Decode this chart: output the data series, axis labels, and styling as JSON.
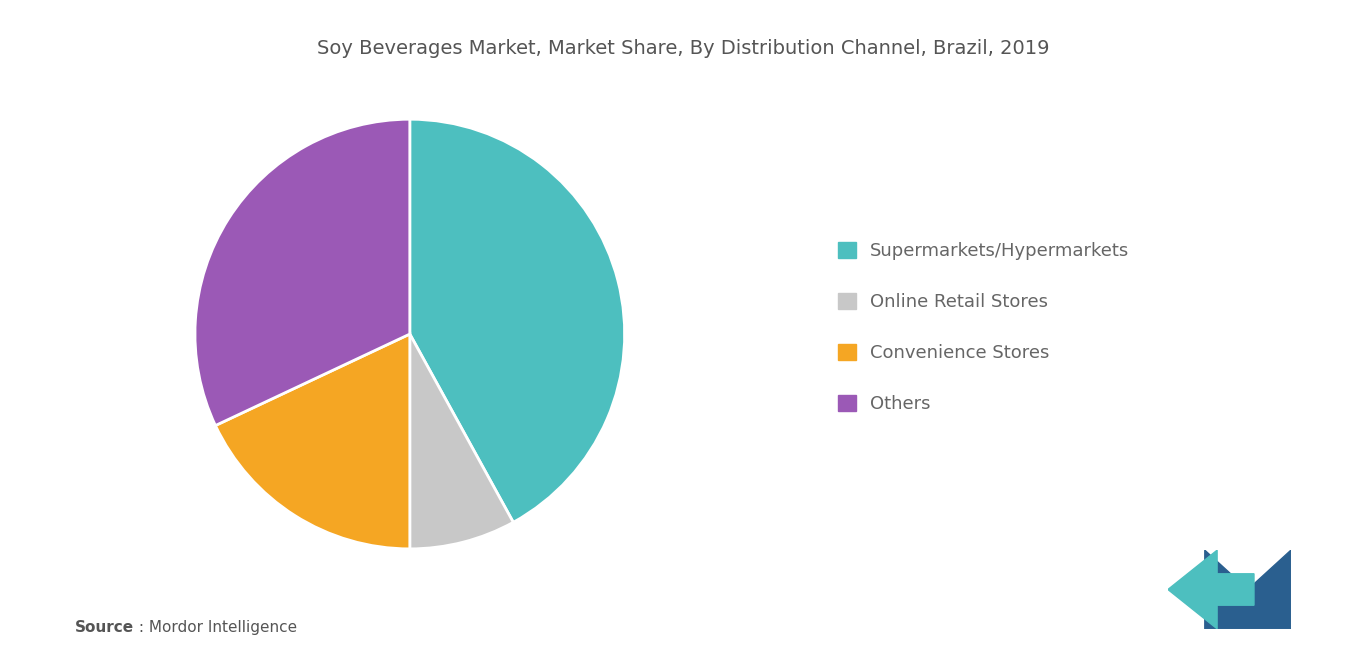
{
  "title": "Soy Beverages Market, Market Share, By Distribution Channel, Brazil, 2019",
  "labels": [
    "Supermarkets/Hypermarkets",
    "Online Retail Stores",
    "Convenience Stores",
    "Others"
  ],
  "sizes": [
    42,
    8,
    18,
    32
  ],
  "colors": [
    "#4DBFBF",
    "#C8C8C8",
    "#F5A623",
    "#9B59B6"
  ],
  "startangle": 90,
  "background_color": "#ffffff",
  "title_fontsize": 14,
  "legend_fontsize": 13,
  "source_bold": "Source",
  "source_normal": " : Mordor Intelligence"
}
